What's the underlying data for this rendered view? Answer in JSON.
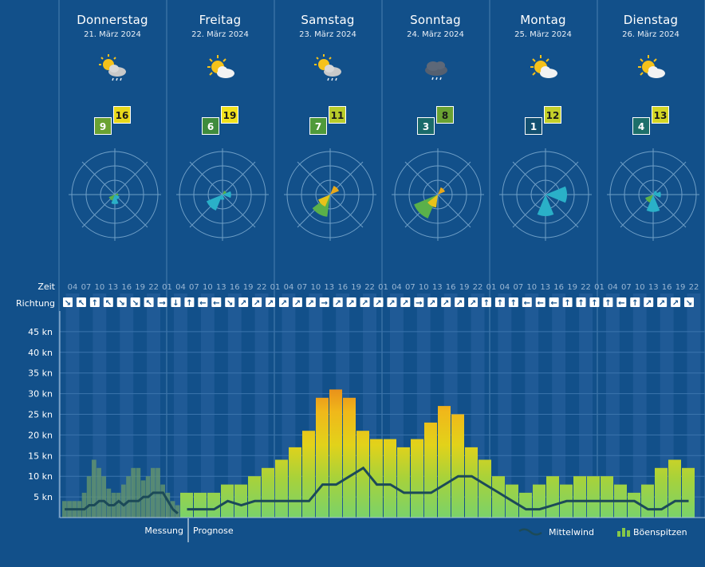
{
  "days": [
    {
      "name": "Donnerstag",
      "date": "21. März 2024",
      "min": "9",
      "max": "16",
      "min_color": "#6aa232",
      "max_color": "#e8d81a",
      "icon": "sun-cloud-rain-icon"
    },
    {
      "name": "Freitag",
      "date": "22. März 2024",
      "min": "6",
      "max": "19",
      "min_color": "#3f8c3d",
      "max_color": "#f2e21c",
      "icon": "sun-cloud-icon"
    },
    {
      "name": "Samstag",
      "date": "23. März 2024",
      "min": "7",
      "max": "11",
      "min_color": "#4f9a3a",
      "max_color": "#b8cc2a",
      "icon": "sun-cloud-rain-icon"
    },
    {
      "name": "Sonntag",
      "date": "24. März 2024",
      "min": "3",
      "max": "8",
      "min_color": "#1a6a6a",
      "max_color": "#6aa232",
      "icon": "dark-cloud-rain-icon"
    },
    {
      "name": "Montag",
      "date": "25. März 2024",
      "min": "1",
      "max": "12",
      "min_color": "#135070",
      "max_color": "#c4d02a",
      "icon": "sun-cloud-icon"
    },
    {
      "name": "Dienstag",
      "date": "26. März 2024",
      "min": "4",
      "max": "13",
      "min_color": "#1d6f6a",
      "max_color": "#d4d625",
      "icon": "sun-cloud-icon"
    }
  ],
  "table": {
    "time_label": "Zeit",
    "direction_label": "Richtung"
  },
  "chart_data": {
    "type": "bar",
    "ylabel": "",
    "y_ticks": [
      "5 kn",
      "10 kn",
      "15 kn",
      "20 kn",
      "25 kn",
      "30 kn",
      "35 kn",
      "40 kn",
      "45 kn"
    ],
    "ylim": [
      0,
      50
    ],
    "x_tick_labels": [
      "04",
      "07",
      "10",
      "13",
      "16",
      "19",
      "22",
      "01",
      "04",
      "07",
      "10",
      "13",
      "16",
      "19",
      "22",
      "01",
      "04",
      "07",
      "10",
      "13",
      "16",
      "19",
      "22",
      "01",
      "04",
      "07",
      "10",
      "13",
      "16",
      "19",
      "22",
      "01",
      "04",
      "07",
      "10",
      "13",
      "16",
      "19",
      "22",
      "01",
      "04",
      "07",
      "10",
      "13",
      "16",
      "19",
      "22"
    ],
    "directions": [
      "↘",
      "↖",
      "↑",
      "↖",
      "↘",
      "↘",
      "↖",
      "→",
      "↓",
      "↑",
      "←",
      "←",
      "↘",
      "↗",
      "↗",
      "↗",
      "↗",
      "↗",
      "↗",
      "→",
      "↗",
      "↗",
      "↗",
      "↗",
      "↗",
      "↗",
      "→",
      "↗",
      "↗",
      "↗",
      "↗",
      "↑",
      "↑",
      "↑",
      "←",
      "←",
      "←",
      "↑",
      "↑",
      "↑",
      "↑",
      "←",
      "↑",
      "↗",
      "↗",
      "↗",
      "↘"
    ],
    "series": [
      {
        "name": "Mittelwind",
        "type": "line",
        "color": "#1c4a58"
      },
      {
        "name": "Böenspitzen",
        "type": "bar"
      }
    ],
    "measured_gusts": [
      4,
      4,
      4,
      4,
      6,
      10,
      14,
      12,
      10,
      7,
      6,
      6,
      8,
      10,
      12,
      12,
      9,
      10,
      12,
      12,
      8,
      6,
      4,
      3
    ],
    "measured_mean": [
      2,
      2,
      2,
      2,
      2,
      3,
      3,
      4,
      4,
      3,
      3,
      4,
      3,
      4,
      4,
      4,
      5,
      5,
      6,
      6,
      6,
      4,
      2,
      1
    ],
    "forecast_gusts": [
      6,
      6,
      6,
      8,
      8,
      10,
      12,
      14,
      17,
      21,
      29,
      31,
      29,
      21,
      19,
      19,
      17,
      19,
      23,
      27,
      25,
      17,
      14,
      10,
      8,
      6,
      8,
      10,
      8,
      10,
      10,
      10,
      8,
      6,
      8,
      12,
      14,
      12
    ],
    "forecast_mean": [
      2,
      2,
      2,
      4,
      3,
      4,
      4,
      4,
      4,
      4,
      8,
      8,
      10,
      12,
      8,
      8,
      6,
      6,
      6,
      8,
      10,
      10,
      8,
      6,
      4,
      2,
      2,
      3,
      4,
      4,
      4,
      4,
      4,
      4,
      2,
      2,
      4,
      4
    ],
    "label_measurement": "Messung",
    "label_forecast": "Prognose",
    "legend": [
      {
        "label": "Mittelwind",
        "icon": "line-legend-icon"
      },
      {
        "label": "Böenspitzen",
        "icon": "bars-legend-icon"
      }
    ]
  },
  "wind_roses": [
    {
      "sectors": [
        {
          "dir": 180,
          "r": 0.22,
          "color": "#2ab0c8"
        },
        {
          "dir": 225,
          "r": 0.15,
          "color": "#5ab04a"
        },
        {
          "dir": 135,
          "r": 0.12,
          "color": "#2ab0c8"
        },
        {
          "dir": 90,
          "r": 0.08,
          "color": "#5ab04a"
        }
      ]
    },
    {
      "sectors": [
        {
          "dir": 225,
          "r": 0.4,
          "color": "#2ab0c8"
        },
        {
          "dir": 90,
          "r": 0.2,
          "color": "#2ab0c8"
        },
        {
          "dir": 180,
          "r": 0.12,
          "color": "#2ab0c8"
        },
        {
          "dir": 45,
          "r": 0.1,
          "color": "#5ab04a"
        }
      ]
    },
    {
      "sectors": [
        {
          "dir": 210,
          "r": 0.52,
          "color": "#5ab04a"
        },
        {
          "dir": 225,
          "r": 0.3,
          "color": "#e8c21a"
        },
        {
          "dir": 45,
          "r": 0.22,
          "color": "#e8a81a"
        }
      ]
    },
    {
      "sectors": [
        {
          "dir": 225,
          "r": 0.6,
          "color": "#5ab04a"
        },
        {
          "dir": 210,
          "r": 0.3,
          "color": "#e8c21a"
        },
        {
          "dir": 45,
          "r": 0.18,
          "color": "#e8a81a"
        }
      ]
    },
    {
      "sectors": [
        {
          "dir": 180,
          "r": 0.5,
          "color": "#2ab0c8"
        },
        {
          "dir": 90,
          "r": 0.5,
          "color": "#2ab0c8"
        }
      ]
    },
    {
      "sectors": [
        {
          "dir": 180,
          "r": 0.4,
          "color": "#2ab0c8"
        },
        {
          "dir": 225,
          "r": 0.2,
          "color": "#5ab04a"
        },
        {
          "dir": 90,
          "r": 0.18,
          "color": "#2ab0c8"
        },
        {
          "dir": 45,
          "r": 0.1,
          "color": "#2ab0c8"
        }
      ]
    }
  ]
}
